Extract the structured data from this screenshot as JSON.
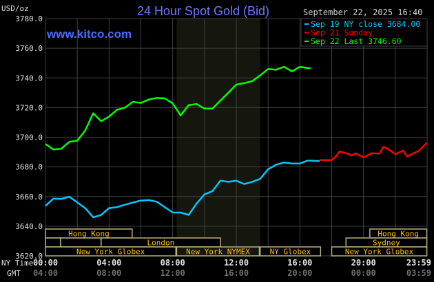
{
  "header": {
    "unit_label": "USD/oz",
    "title": "24 Hour Spot Gold (Bid)",
    "site": "www.kitco.com",
    "timestamp": "September 22, 2025 16:40"
  },
  "colors": {
    "background": "#000000",
    "grid": "#404040",
    "title": "#6b78ff",
    "site": "#4a6cff",
    "sep19": "#00c8ff",
    "sep21": "#ff0000",
    "sep22": "#00ff00",
    "session_border": "#b8b07a",
    "session_text": "#ffc000",
    "nymex_shade": "#15170f",
    "ny_time": "#e0e0e0",
    "gmt": "#707070"
  },
  "chart_data": {
    "type": "line",
    "title": "24 Hour Spot Gold (Bid)",
    "ylabel": "USD/oz",
    "ylim": [
      3620,
      3780
    ],
    "yticks": [
      "3620.0",
      "3640.0",
      "3660.0",
      "3680.0",
      "3700.0",
      "3720.0",
      "3740.0",
      "3760.0",
      "3780.0"
    ],
    "xlim_hours": [
      0,
      24
    ],
    "grid": true,
    "legend_placement": "top-right",
    "x_axis_rows": [
      {
        "label": "NY Time",
        "ticks": [
          "00:00",
          "04:00",
          "08:00",
          "12:00",
          "16:00",
          "20:00",
          "23:59"
        ]
      },
      {
        "label": "GMT",
        "ticks": [
          "04:00",
          "08:00",
          "12:00",
          "16:00",
          "20:00",
          "00:00",
          "03:59"
        ]
      }
    ],
    "highlight_band_hours": [
      8.25,
      13.5
    ],
    "series": [
      {
        "name": "Sep 19 NY close 3684.00",
        "color_key": "sep19",
        "x": [
          0,
          0.5,
          1,
          1.5,
          2,
          2.5,
          3,
          3.5,
          4,
          4.5,
          5,
          5.5,
          6,
          6.5,
          7,
          7.5,
          8,
          8.5,
          9,
          9.5,
          10,
          10.5,
          11,
          11.5,
          12,
          12.5,
          13,
          13.5,
          14,
          14.5,
          15,
          15.5,
          16,
          16.5,
          17,
          17.25
        ],
        "y": [
          3653.7,
          3658.6,
          3658.4,
          3659.9,
          3656.0,
          3652.2,
          3646.0,
          3647.6,
          3652.2,
          3652.9,
          3654.5,
          3656.0,
          3657.3,
          3657.6,
          3656.5,
          3652.9,
          3649.2,
          3649.2,
          3647.6,
          3655.3,
          3661.4,
          3663.7,
          3670.7,
          3669.9,
          3670.7,
          3668.4,
          3669.9,
          3671.9,
          3678.4,
          3681.5,
          3683.0,
          3682.3,
          3682.3,
          3684.3,
          3684.0,
          3684.0
        ]
      },
      {
        "name": "Sep 21 Sunday",
        "color_key": "sep21",
        "x": [
          17.25,
          18,
          18.25,
          18.5,
          19,
          19.25,
          19.5,
          20,
          20.5,
          21,
          21.25,
          21.5,
          22,
          22.5,
          22.75,
          23,
          23.5,
          23.98
        ],
        "y": [
          3684.6,
          3684.6,
          3686.9,
          3690.4,
          3688.9,
          3687.6,
          3689.2,
          3686.4,
          3689.2,
          3688.9,
          3693.5,
          3692.3,
          3688.6,
          3691.0,
          3686.9,
          3688.4,
          3691.0,
          3696.1
        ]
      },
      {
        "name": "Sep 22 Last 3746.60",
        "color_key": "sep22",
        "x": [
          0,
          0.5,
          1,
          1.5,
          2,
          2.5,
          3,
          3.5,
          4,
          4.5,
          5,
          5.5,
          6,
          6.5,
          7,
          7.5,
          8,
          8.5,
          9,
          9.5,
          10,
          10.5,
          11,
          11.5,
          12,
          12.5,
          13,
          13.5,
          14,
          14.5,
          15,
          15.5,
          16,
          16.5,
          16.67
        ],
        "y": [
          3695.4,
          3691.7,
          3692.3,
          3696.9,
          3697.7,
          3704.6,
          3716.2,
          3710.8,
          3713.9,
          3718.5,
          3720.0,
          3723.9,
          3723.1,
          3725.4,
          3726.5,
          3726.2,
          3722.8,
          3714.7,
          3721.6,
          3722.4,
          3719.3,
          3719.3,
          3724.7,
          3730.0,
          3735.5,
          3736.5,
          3737.8,
          3741.7,
          3746.0,
          3745.5,
          3747.5,
          3744.4,
          3747.5,
          3746.6,
          3746.6
        ]
      }
    ],
    "sessions": [
      {
        "row": 0,
        "label": "Hong Kong",
        "start": 0,
        "end": 5.45
      },
      {
        "row": 0,
        "label": "Hong Kong",
        "start": 20.4,
        "end": 23.98
      },
      {
        "row": 1,
        "label": "",
        "start": 0,
        "end": 0.95
      },
      {
        "row": 1,
        "label": "",
        "start": 0.95,
        "end": 3.5
      },
      {
        "row": 1,
        "label": "London",
        "start": 3.5,
        "end": 11.0
      },
      {
        "row": 1,
        "label": "Sydney",
        "start": 18.9,
        "end": 23.98
      },
      {
        "row": 2,
        "label": "New York Globex",
        "start": 0,
        "end": 8.2
      },
      {
        "row": 2,
        "label": "New York NYMEX",
        "start": 8.25,
        "end": 13.45
      },
      {
        "row": 2,
        "label": "NY Globex",
        "start": 13.5,
        "end": 17.3
      },
      {
        "row": 2,
        "label": "New York Globex",
        "start": 18,
        "end": 23.98
      }
    ]
  }
}
